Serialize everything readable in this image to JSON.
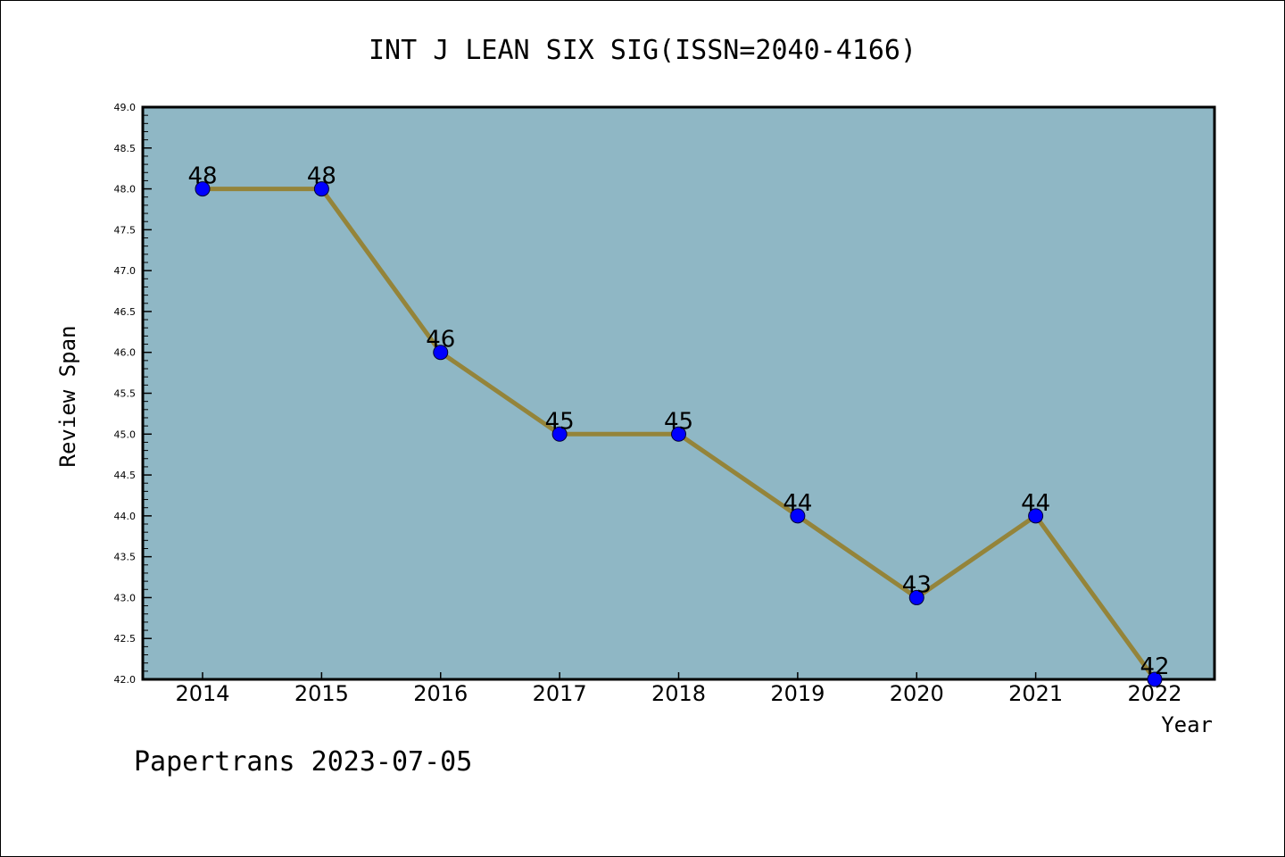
{
  "chart_data": {
    "type": "line",
    "title": "INT J LEAN SIX SIG(ISSN=2040-4166)",
    "xlabel": "Year",
    "ylabel": "Review Span",
    "categories": [
      "2014",
      "2015",
      "2016",
      "2017",
      "2018",
      "2019",
      "2020",
      "2021",
      "2022"
    ],
    "series": [
      {
        "values": [
          48,
          48,
          46,
          45,
          45,
          44,
          43,
          44,
          42
        ],
        "data_labels": [
          "48",
          "48",
          "46",
          "45",
          "45",
          "44",
          "43",
          "44",
          "42"
        ]
      }
    ],
    "ylim": [
      42.0,
      49.0
    ],
    "y_ticks": [
      "42.0",
      "42.5",
      "43.0",
      "43.5",
      "44.0",
      "44.5",
      "45.0",
      "45.5",
      "46.0",
      "46.5",
      "47.0",
      "47.5",
      "48.0",
      "48.5",
      "49.0"
    ],
    "grid": false,
    "legend": "none",
    "colors": {
      "plot_background": "#8fb7c5",
      "line": "#94843a",
      "marker": "#0000ff"
    }
  },
  "footer": {
    "watermark": "Papertrans 2023-07-05"
  }
}
